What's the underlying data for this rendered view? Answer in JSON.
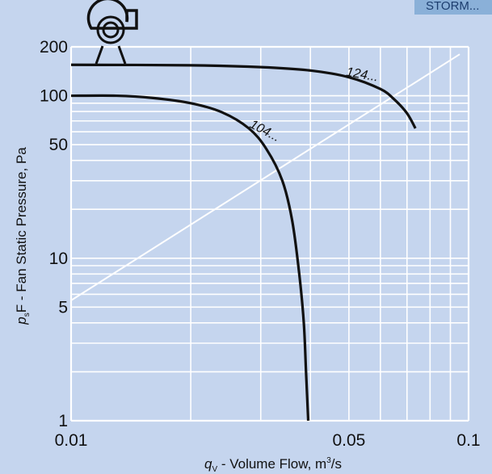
{
  "badge": "STORM...",
  "chart_data": {
    "type": "line",
    "x_scale": "log",
    "y_scale": "log",
    "xlim": [
      0.01,
      0.1
    ],
    "ylim": [
      1,
      200
    ],
    "x_ticks": [
      {
        "value": 0.01,
        "label": "0.01"
      },
      {
        "value": 0.05,
        "label": "0.05"
      },
      {
        "value": 0.1,
        "label": "0.1"
      }
    ],
    "y_ticks": [
      {
        "value": 1,
        "label": "1"
      },
      {
        "value": 5,
        "label": "5"
      },
      {
        "value": 10,
        "label": "10"
      },
      {
        "value": 50,
        "label": "50"
      },
      {
        "value": 100,
        "label": "100"
      },
      {
        "value": 200,
        "label": "200"
      }
    ],
    "x_gridlines": [
      0.01,
      0.02,
      0.03,
      0.04,
      0.05,
      0.06,
      0.07,
      0.08,
      0.09,
      0.1
    ],
    "y_gridlines": [
      1,
      2,
      3,
      4,
      5,
      6,
      7,
      8,
      9,
      10,
      20,
      30,
      40,
      50,
      60,
      70,
      80,
      90,
      100,
      200
    ],
    "grid": true,
    "xlabel": {
      "symbol": "q",
      "sub": "V",
      "text": " - Volume Flow, m",
      "sup": "3",
      "tail": "/s"
    },
    "ylabel": {
      "symbol": "p",
      "sub": "s",
      "text": "F - Fan Static Pressure, Pa"
    },
    "series": [
      {
        "name": "124...",
        "x": [
          0.01,
          0.02,
          0.03,
          0.04,
          0.05,
          0.06,
          0.065,
          0.07,
          0.0735
        ],
        "y": [
          155,
          154,
          150,
          143,
          130,
          110,
          95,
          78,
          63
        ]
      },
      {
        "name": "104...",
        "x": [
          0.01,
          0.013,
          0.016,
          0.02,
          0.024,
          0.028,
          0.031,
          0.034,
          0.036,
          0.0375,
          0.0385,
          0.039,
          0.0395
        ],
        "y": [
          100,
          100,
          97,
          90,
          79,
          63,
          47,
          30,
          17,
          8,
          4,
          2,
          1
        ]
      }
    ],
    "reference_line": {
      "color": "#ffffff",
      "x": [
        0.01,
        0.095
      ],
      "y": [
        5.5,
        180
      ]
    },
    "colors": {
      "background": "#c5d5ee",
      "curve": "#111111",
      "grid": "#ffffff",
      "badge": "#8ab0d8"
    },
    "icon": "centrifugal-fan-icon"
  }
}
